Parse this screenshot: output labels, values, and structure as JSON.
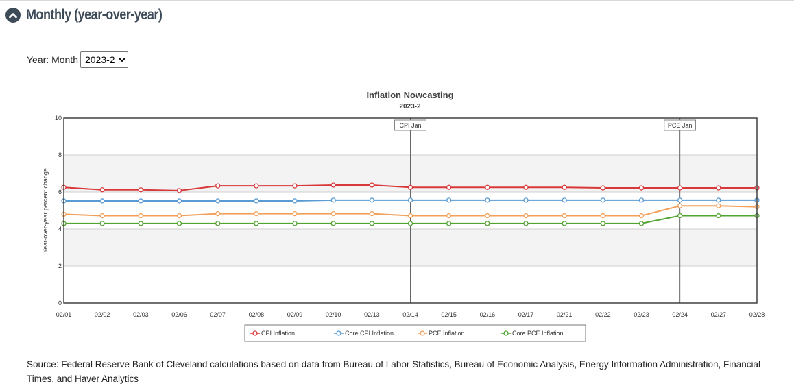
{
  "section": {
    "title": "Monthly (year-over-year)",
    "toggle_icon": "chevron-up-icon"
  },
  "selector": {
    "label": "Year: Month",
    "selected": "2023-2",
    "options": [
      "2023-2"
    ]
  },
  "chart_data": {
    "type": "line",
    "title": "Inflation Nowcasting",
    "subtitle": "2023-2",
    "ylabel": "Year-over-year percent change",
    "xlabel": "",
    "ylim": [
      0,
      10
    ],
    "yticks": [
      0,
      2,
      4,
      6,
      8,
      10
    ],
    "grid": true,
    "legend_position": "bottom",
    "categories": [
      "02/01",
      "02/02",
      "02/03",
      "02/06",
      "02/07",
      "02/08",
      "02/09",
      "02/10",
      "02/13",
      "02/14",
      "02/15",
      "02/16",
      "02/17",
      "02/21",
      "02/22",
      "02/23",
      "02/24",
      "02/27",
      "02/28"
    ],
    "series": [
      {
        "name": "CPI Inflation",
        "color": "#d9383a",
        "values": [
          6.25,
          6.12,
          6.12,
          6.08,
          6.33,
          6.33,
          6.33,
          6.37,
          6.37,
          6.25,
          6.25,
          6.25,
          6.25,
          6.25,
          6.22,
          6.22,
          6.22,
          6.22,
          6.22
        ]
      },
      {
        "name": "Core CPI Inflation",
        "color": "#5a9bd4",
        "values": [
          5.52,
          5.52,
          5.52,
          5.52,
          5.52,
          5.52,
          5.52,
          5.56,
          5.56,
          5.56,
          5.56,
          5.56,
          5.56,
          5.56,
          5.56,
          5.56,
          5.56,
          5.56,
          5.56
        ]
      },
      {
        "name": "PCE Inflation",
        "color": "#f2a05a",
        "values": [
          4.8,
          4.72,
          4.72,
          4.72,
          4.83,
          4.83,
          4.83,
          4.83,
          4.83,
          4.72,
          4.72,
          4.72,
          4.72,
          4.72,
          4.72,
          4.72,
          5.25,
          5.25,
          5.2
        ]
      },
      {
        "name": "Core PCE Inflation",
        "color": "#52a431",
        "values": [
          4.3,
          4.3,
          4.3,
          4.3,
          4.3,
          4.3,
          4.3,
          4.3,
          4.3,
          4.3,
          4.3,
          4.3,
          4.3,
          4.3,
          4.3,
          4.3,
          4.72,
          4.72,
          4.72
        ]
      }
    ],
    "annotations": [
      {
        "label": "CPI Jan",
        "at": "02/14"
      },
      {
        "label": "PCE Jan",
        "at": "02/24"
      }
    ]
  },
  "source": {
    "text": "Source: Federal Reserve Bank of Cleveland calculations based on data from Bureau of Labor Statistics, Bureau of Economic Analysis, Energy Information Administration, Financial Times, and Haver Analytics"
  }
}
